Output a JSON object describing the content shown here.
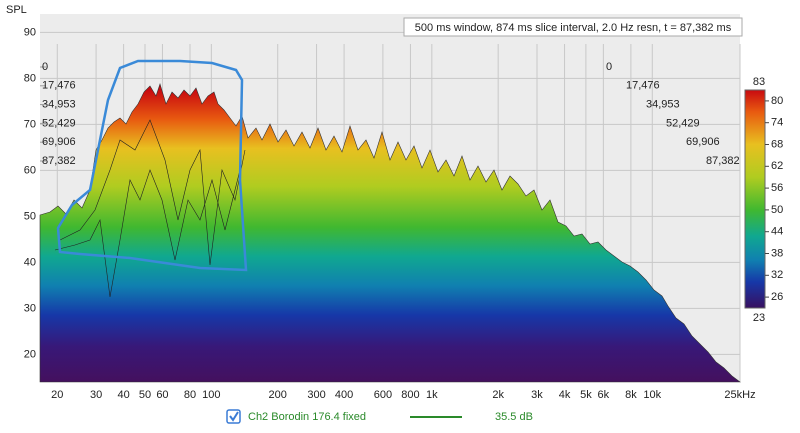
{
  "chart_data": {
    "type": "waterfall",
    "y_label": "SPL",
    "annotation": "500 ms window, 874 ms slice interval, 2.0 Hz resn, t = 87,382 ms",
    "log_x": true,
    "grid": true,
    "xlim": [
      16.7,
      25000
    ],
    "xticks": [
      20,
      30,
      40,
      50,
      60,
      80,
      100,
      200,
      300,
      400,
      600,
      800,
      {
        "value": 1000,
        "label": "1k"
      },
      {
        "value": 2000,
        "label": "2k"
      },
      {
        "value": 3000,
        "label": "3k"
      },
      {
        "value": 4000,
        "label": "4k"
      },
      {
        "value": 5000,
        "label": "5k"
      },
      {
        "value": 6000,
        "label": "6k"
      },
      {
        "value": 8000,
        "label": "8k"
      },
      {
        "value": 10000,
        "label": "10k"
      },
      {
        "value": 25000,
        "label": "25kHz"
      }
    ],
    "ylim": [
      14,
      94
    ],
    "yticks": [
      20,
      30,
      40,
      50,
      60,
      70,
      80,
      90
    ],
    "time_ticks": [
      0,
      {
        "value": 17476,
        "label": "17,476"
      },
      {
        "value": 34953,
        "label": "34,953"
      },
      {
        "value": 52429,
        "label": "52,429"
      },
      {
        "value": 69906,
        "label": "69,906"
      },
      {
        "value": 87382,
        "label": "87,382"
      }
    ],
    "colorbar_lim": [
      23,
      83
    ],
    "colorbar_ticks": [
      26,
      32,
      38,
      44,
      50,
      56,
      62,
      68,
      74,
      80
    ],
    "series": [
      {
        "name": "Ch2 Borodin 176.4 fixed",
        "color": "#2a8a2a",
        "level": "35.5 dB"
      }
    ]
  }
}
